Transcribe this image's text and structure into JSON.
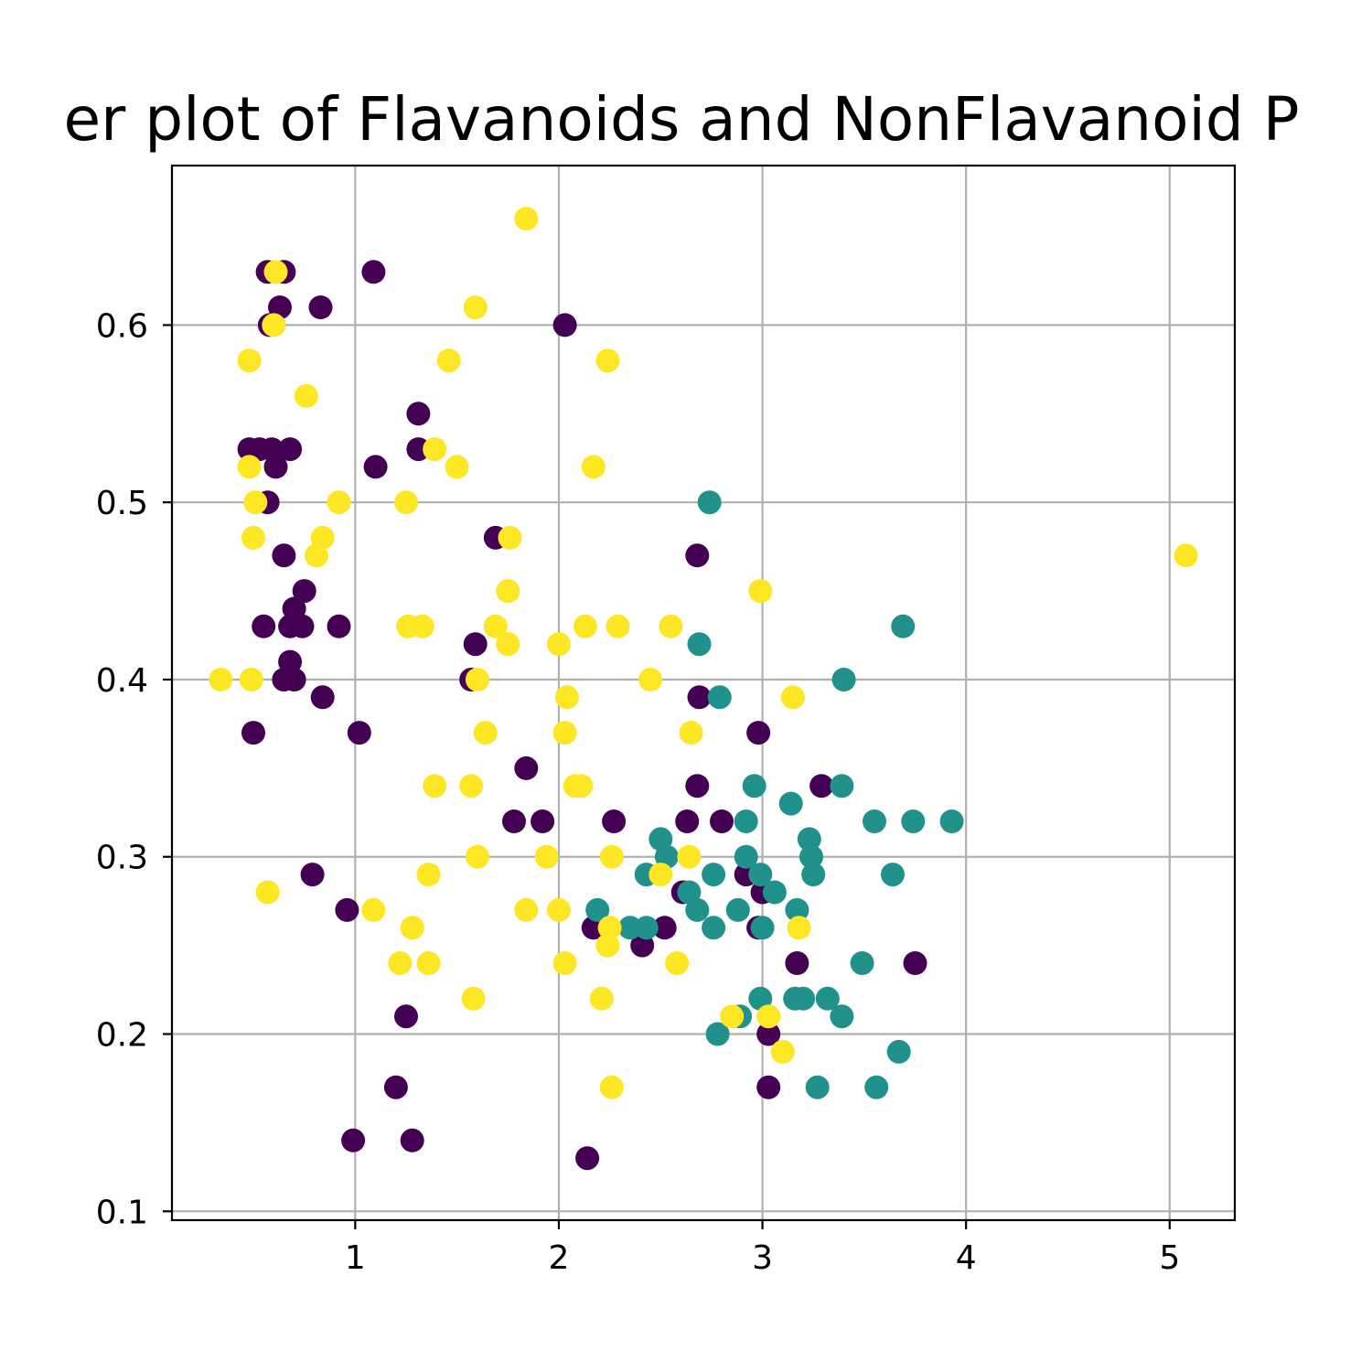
{
  "chart_data": {
    "type": "scatter",
    "title": "er plot of Flavanoids and NonFlavanoid P",
    "xlabel": "",
    "ylabel": "",
    "xlim": [
      0.1,
      5.32
    ],
    "ylim": [
      0.095,
      0.69
    ],
    "x_ticks": [
      1,
      2,
      3,
      4,
      5
    ],
    "y_ticks": [
      0.1,
      0.2,
      0.3,
      0.4,
      0.5,
      0.6
    ],
    "x_tick_labels": [
      "1",
      "2",
      "3",
      "4",
      "5"
    ],
    "y_tick_labels": [
      "0.1",
      "0.2",
      "0.3",
      "0.4",
      "0.5",
      "0.6"
    ],
    "grid": true,
    "legend": "none",
    "colors": {
      "purple": "#440154",
      "teal": "#21918c",
      "yellow": "#fde725",
      "grid": "#b0b0b0"
    },
    "series": [
      {
        "color": "#440154",
        "points": [
          [
            0.57,
            0.63
          ],
          [
            0.65,
            0.63
          ],
          [
            1.09,
            0.63
          ],
          [
            0.63,
            0.61
          ],
          [
            0.83,
            0.61
          ],
          [
            0.58,
            0.6
          ],
          [
            2.03,
            0.6
          ],
          [
            1.31,
            0.55
          ],
          [
            0.48,
            0.53
          ],
          [
            0.53,
            0.53
          ],
          [
            0.59,
            0.53
          ],
          [
            0.68,
            0.53
          ],
          [
            1.31,
            0.53
          ],
          [
            0.61,
            0.52
          ],
          [
            1.1,
            0.52
          ],
          [
            0.57,
            0.5
          ],
          [
            1.69,
            0.48
          ],
          [
            0.65,
            0.47
          ],
          [
            2.68,
            0.47
          ],
          [
            0.75,
            0.45
          ],
          [
            0.7,
            0.44
          ],
          [
            0.55,
            0.43
          ],
          [
            0.68,
            0.43
          ],
          [
            0.74,
            0.43
          ],
          [
            0.92,
            0.43
          ],
          [
            1.59,
            0.42
          ],
          [
            0.68,
            0.41
          ],
          [
            0.65,
            0.4
          ],
          [
            0.7,
            0.4
          ],
          [
            1.57,
            0.4
          ],
          [
            0.84,
            0.39
          ],
          [
            2.69,
            0.39
          ],
          [
            0.5,
            0.37
          ],
          [
            1.02,
            0.37
          ],
          [
            2.98,
            0.37
          ],
          [
            1.84,
            0.35
          ],
          [
            2.68,
            0.34
          ],
          [
            3.29,
            0.34
          ],
          [
            1.78,
            0.32
          ],
          [
            1.92,
            0.32
          ],
          [
            2.27,
            0.32
          ],
          [
            2.63,
            0.32
          ],
          [
            2.8,
            0.32
          ],
          [
            0.79,
            0.29
          ],
          [
            2.92,
            0.29
          ],
          [
            2.61,
            0.28
          ],
          [
            3.0,
            0.28
          ],
          [
            0.96,
            0.27
          ],
          [
            2.17,
            0.26
          ],
          [
            2.52,
            0.26
          ],
          [
            2.98,
            0.26
          ],
          [
            2.41,
            0.25
          ],
          [
            3.17,
            0.24
          ],
          [
            3.75,
            0.24
          ],
          [
            1.25,
            0.21
          ],
          [
            3.03,
            0.2
          ],
          [
            1.2,
            0.17
          ],
          [
            3.03,
            0.17
          ],
          [
            0.99,
            0.14
          ],
          [
            1.28,
            0.14
          ],
          [
            2.14,
            0.13
          ]
        ]
      },
      {
        "color": "#21918c",
        "points": [
          [
            2.74,
            0.5
          ],
          [
            3.69,
            0.43
          ],
          [
            2.69,
            0.42
          ],
          [
            3.4,
            0.4
          ],
          [
            2.79,
            0.39
          ],
          [
            2.96,
            0.34
          ],
          [
            3.39,
            0.34
          ],
          [
            3.14,
            0.33
          ],
          [
            2.92,
            0.32
          ],
          [
            3.55,
            0.32
          ],
          [
            3.74,
            0.32
          ],
          [
            3.93,
            0.32
          ],
          [
            2.5,
            0.31
          ],
          [
            3.23,
            0.31
          ],
          [
            2.53,
            0.3
          ],
          [
            2.92,
            0.3
          ],
          [
            3.24,
            0.3
          ],
          [
            2.43,
            0.29
          ],
          [
            2.76,
            0.29
          ],
          [
            2.99,
            0.29
          ],
          [
            3.25,
            0.29
          ],
          [
            3.64,
            0.29
          ],
          [
            2.64,
            0.28
          ],
          [
            3.06,
            0.28
          ],
          [
            2.19,
            0.27
          ],
          [
            2.68,
            0.27
          ],
          [
            2.88,
            0.27
          ],
          [
            3.17,
            0.27
          ],
          [
            2.35,
            0.26
          ],
          [
            2.43,
            0.26
          ],
          [
            2.76,
            0.26
          ],
          [
            3.0,
            0.26
          ],
          [
            3.49,
            0.24
          ],
          [
            2.99,
            0.22
          ],
          [
            3.16,
            0.22
          ],
          [
            3.2,
            0.22
          ],
          [
            3.32,
            0.22
          ],
          [
            2.89,
            0.21
          ],
          [
            3.39,
            0.21
          ],
          [
            2.78,
            0.2
          ],
          [
            3.67,
            0.19
          ],
          [
            3.27,
            0.17
          ],
          [
            3.56,
            0.17
          ]
        ]
      },
      {
        "color": "#fde725",
        "points": [
          [
            1.84,
            0.66
          ],
          [
            0.61,
            0.63
          ],
          [
            1.59,
            0.61
          ],
          [
            0.6,
            0.6
          ],
          [
            0.48,
            0.58
          ],
          [
            1.46,
            0.58
          ],
          [
            2.24,
            0.58
          ],
          [
            0.76,
            0.56
          ],
          [
            1.39,
            0.53
          ],
          [
            0.48,
            0.52
          ],
          [
            1.5,
            0.52
          ],
          [
            2.17,
            0.52
          ],
          [
            0.51,
            0.5
          ],
          [
            0.92,
            0.5
          ],
          [
            1.25,
            0.5
          ],
          [
            0.5,
            0.48
          ],
          [
            0.84,
            0.48
          ],
          [
            1.76,
            0.48
          ],
          [
            0.81,
            0.47
          ],
          [
            5.08,
            0.47
          ],
          [
            1.75,
            0.45
          ],
          [
            2.99,
            0.45
          ],
          [
            1.26,
            0.43
          ],
          [
            1.33,
            0.43
          ],
          [
            1.69,
            0.43
          ],
          [
            2.13,
            0.43
          ],
          [
            2.29,
            0.43
          ],
          [
            2.55,
            0.43
          ],
          [
            1.75,
            0.42
          ],
          [
            2.0,
            0.42
          ],
          [
            0.34,
            0.4
          ],
          [
            0.49,
            0.4
          ],
          [
            1.6,
            0.4
          ],
          [
            2.45,
            0.4
          ],
          [
            2.04,
            0.39
          ],
          [
            3.15,
            0.39
          ],
          [
            1.64,
            0.37
          ],
          [
            2.03,
            0.37
          ],
          [
            2.65,
            0.37
          ],
          [
            1.39,
            0.34
          ],
          [
            1.57,
            0.34
          ],
          [
            2.08,
            0.34
          ],
          [
            2.11,
            0.34
          ],
          [
            1.6,
            0.3
          ],
          [
            1.94,
            0.3
          ],
          [
            2.26,
            0.3
          ],
          [
            2.64,
            0.3
          ],
          [
            1.36,
            0.29
          ],
          [
            2.5,
            0.29
          ],
          [
            0.57,
            0.28
          ],
          [
            1.09,
            0.27
          ],
          [
            1.84,
            0.27
          ],
          [
            2.0,
            0.27
          ],
          [
            1.28,
            0.26
          ],
          [
            2.25,
            0.26
          ],
          [
            3.18,
            0.26
          ],
          [
            2.24,
            0.25
          ],
          [
            1.22,
            0.24
          ],
          [
            1.36,
            0.24
          ],
          [
            2.03,
            0.24
          ],
          [
            2.58,
            0.24
          ],
          [
            1.58,
            0.22
          ],
          [
            2.21,
            0.22
          ],
          [
            2.85,
            0.21
          ],
          [
            3.03,
            0.21
          ],
          [
            3.1,
            0.19
          ],
          [
            2.26,
            0.17
          ]
        ]
      }
    ]
  }
}
